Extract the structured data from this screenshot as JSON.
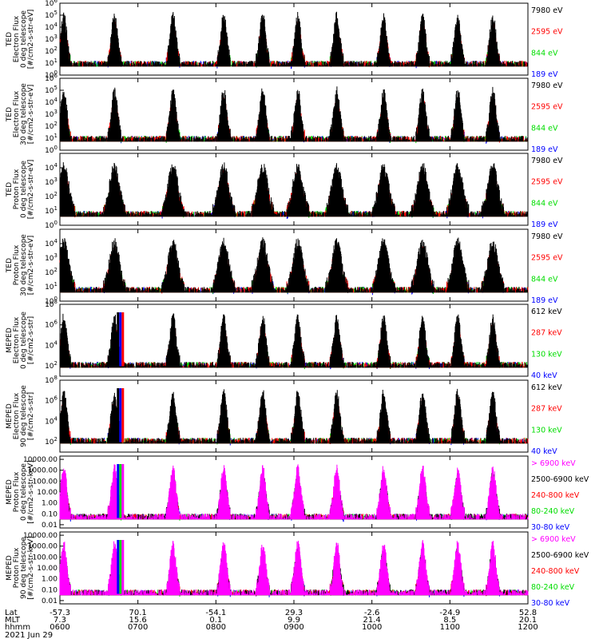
{
  "chart_data": {
    "type": "line",
    "date_label": "2021 Jun 29",
    "x_axis": {
      "row_labels": [
        "Lat",
        "MLT",
        "hhmm"
      ],
      "ticks": [
        {
          "lat": "-57.3",
          "mlt": "7.3",
          "hhmm": "0600"
        },
        {
          "lat": "70.1",
          "mlt": "15.6",
          "hhmm": "0700"
        },
        {
          "lat": "-54.1",
          "mlt": "0.1",
          "hhmm": "0800"
        },
        {
          "lat": "29.3",
          "mlt": "9.9",
          "hhmm": "0900"
        },
        {
          "lat": "-2.6",
          "mlt": "21.4",
          "hhmm": "1000"
        },
        {
          "lat": "-24.9",
          "mlt": "8.5",
          "hhmm": "1100"
        },
        {
          "lat": "52.8",
          "mlt": "20.1",
          "hhmm": "1200"
        }
      ],
      "time_range_hours": [
        6,
        12
      ]
    },
    "panels": [
      {
        "ylabel": [
          "TED",
          "Electron Flux",
          "0 deg telescope",
          "[#/cm2-s-str-eV]"
        ],
        "ylim_log10": [
          0,
          6
        ],
        "yticks": [
          {
            "exp": "0"
          },
          {
            "exp": "1"
          },
          {
            "exp": "2"
          },
          {
            "exp": "3"
          },
          {
            "exp": "4"
          },
          {
            "exp": "5"
          },
          {
            "exp": "6"
          }
        ],
        "legend": [
          {
            "label": "7980 eV",
            "color": "#000000"
          },
          {
            "label": "2595 eV",
            "color": "#ff0000"
          },
          {
            "label": "844 eV",
            "color": "#00dd00"
          },
          {
            "label": "189 eV",
            "color": "#0000ff"
          }
        ]
      },
      {
        "ylabel": [
          "TED",
          "Electron Flux",
          "30 deg telescope",
          "[#/cm2-s-str-eV]"
        ],
        "ylim_log10": [
          0,
          6
        ],
        "yticks": [
          {
            "exp": "0"
          },
          {
            "exp": "1"
          },
          {
            "exp": "2"
          },
          {
            "exp": "3"
          },
          {
            "exp": "4"
          },
          {
            "exp": "5"
          },
          {
            "exp": "6"
          }
        ],
        "legend": [
          {
            "label": "7980 eV",
            "color": "#000000"
          },
          {
            "label": "2595 eV",
            "color": "#ff0000"
          },
          {
            "label": "844 eV",
            "color": "#00dd00"
          },
          {
            "label": "189 eV",
            "color": "#0000ff"
          }
        ]
      },
      {
        "ylabel": [
          "TED",
          "Proton Flux",
          "0 deg telescope",
          "[#/cm2-s-str-eV]"
        ],
        "ylim_log10": [
          0,
          5
        ],
        "yticks": [
          {
            "exp": "0"
          },
          {
            "exp": "1"
          },
          {
            "exp": "2"
          },
          {
            "exp": "3"
          },
          {
            "exp": "4"
          }
        ],
        "legend": [
          {
            "label": "7980 eV",
            "color": "#000000"
          },
          {
            "label": "2595 eV",
            "color": "#ff0000"
          },
          {
            "label": "844 eV",
            "color": "#00dd00"
          },
          {
            "label": "189 eV",
            "color": "#0000ff"
          }
        ]
      },
      {
        "ylabel": [
          "TED",
          "Proton Flux",
          "30 deg telescope",
          "[#/cm2-s-str-eV]"
        ],
        "ylim_log10": [
          0,
          5
        ],
        "yticks": [
          {
            "exp": "0"
          },
          {
            "exp": "1"
          },
          {
            "exp": "2"
          },
          {
            "exp": "3"
          },
          {
            "exp": "4"
          }
        ],
        "legend": [
          {
            "label": "7980 eV",
            "color": "#000000"
          },
          {
            "label": "2595 eV",
            "color": "#ff0000"
          },
          {
            "label": "844 eV",
            "color": "#00dd00"
          },
          {
            "label": "189 eV",
            "color": "#0000ff"
          }
        ]
      },
      {
        "ylabel": [
          "MEPED",
          "Electron Flux",
          "0 deg telescope",
          "[#/cm2-s-str]"
        ],
        "ylim_log10": [
          1,
          8
        ],
        "yticks": [
          {
            "exp": "2"
          },
          {
            "exp": "4"
          },
          {
            "exp": "6"
          },
          {
            "exp": "8"
          }
        ],
        "legend": [
          {
            "label": "612 keV",
            "color": "#000000"
          },
          {
            "label": "287 keV",
            "color": "#ff0000"
          },
          {
            "label": "130 keV",
            "color": "#00dd00"
          },
          {
            "label": "40 keV",
            "color": "#0000ff"
          }
        ]
      },
      {
        "ylabel": [
          "MEPED",
          "Electron Flux",
          "90 deg telescope",
          "[#/cm2-s-str]"
        ],
        "ylim_log10": [
          1,
          8
        ],
        "yticks": [
          {
            "exp": "2"
          },
          {
            "exp": "4"
          },
          {
            "exp": "6"
          },
          {
            "exp": "8"
          }
        ],
        "legend": [
          {
            "label": "612 keV",
            "color": "#000000"
          },
          {
            "label": "287 keV",
            "color": "#ff0000"
          },
          {
            "label": "130 keV",
            "color": "#00dd00"
          },
          {
            "label": "40 keV",
            "color": "#0000ff"
          }
        ]
      },
      {
        "ylabel": [
          "MEPED",
          "Proton Flux",
          "0 deg telescope",
          "[#/cm2-s-str-keV]"
        ],
        "ylim_log10": [
          -2.3,
          4.3
        ],
        "ytick_labels": [
          "10000.00",
          "1000.00",
          "100.00",
          "10.00",
          "1.00",
          "0.10",
          "0.01"
        ],
        "legend": [
          {
            "label": "> 6900 keV",
            "color": "#ff00ff"
          },
          {
            "label": "2500-6900 keV",
            "color": "#000000"
          },
          {
            "label": "240-800 keV",
            "color": "#ff0000"
          },
          {
            "label": "80-240 keV",
            "color": "#00dd00"
          },
          {
            "label": "30-80 keV",
            "color": "#0000ff"
          }
        ]
      },
      {
        "ylabel": [
          "MEPED",
          "Proton Flux",
          "90 deg telescope",
          "[#/cm2-s-str-keV]"
        ],
        "ylim_log10": [
          -2.3,
          4.3
        ],
        "ytick_labels": [
          "10000.00",
          "1000.00",
          "100.00",
          "10.00",
          "1.00",
          "0.10",
          "0.01"
        ],
        "legend": [
          {
            "label": "> 6900 keV",
            "color": "#ff00ff"
          },
          {
            "label": "2500-6900 keV",
            "color": "#000000"
          },
          {
            "label": "240-800 keV",
            "color": "#ff0000"
          },
          {
            "label": "80-240 keV",
            "color": "#00dd00"
          },
          {
            "label": "30-80 keV",
            "color": "#0000ff"
          }
        ]
      }
    ]
  }
}
